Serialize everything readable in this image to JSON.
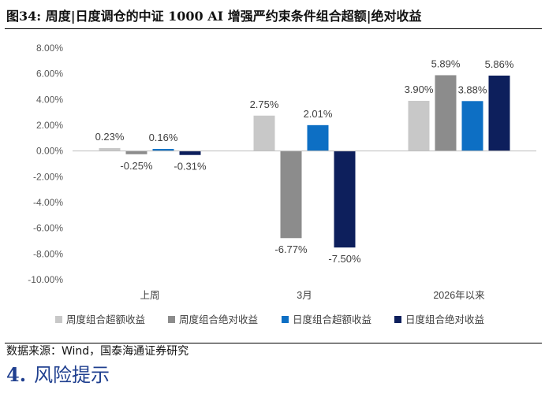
{
  "figure": {
    "title": "图34:  周度|日度调仓的中证 1000 AI 增强严约束条件组合超额|绝对收益"
  },
  "source": "数据来源：Wind，国泰海通证券研究",
  "next_section": {
    "number": "4.",
    "title": "风险提示"
  },
  "chart_data": {
    "type": "bar",
    "categories": [
      "上周",
      "3月",
      "2026年以来"
    ],
    "series": [
      {
        "name": "周度组合超额收益",
        "values": [
          0.23,
          2.75,
          3.9
        ],
        "color": "#c8c8c8"
      },
      {
        "name": "周度组合绝对收益",
        "values": [
          -0.25,
          -6.77,
          5.89
        ],
        "color": "#8c8c8c"
      },
      {
        "name": "日度组合超额收益",
        "values": [
          0.16,
          2.01,
          3.88
        ],
        "color": "#0d6fc4"
      },
      {
        "name": "日度组合绝对收益",
        "values": [
          -0.31,
          -7.5,
          5.86
        ],
        "color": "#0d1f5c"
      }
    ],
    "ylim": [
      -10,
      8
    ],
    "ytick_step": 2,
    "y_format": "percent_2dp",
    "legend_position": "bottom",
    "grid": false
  }
}
